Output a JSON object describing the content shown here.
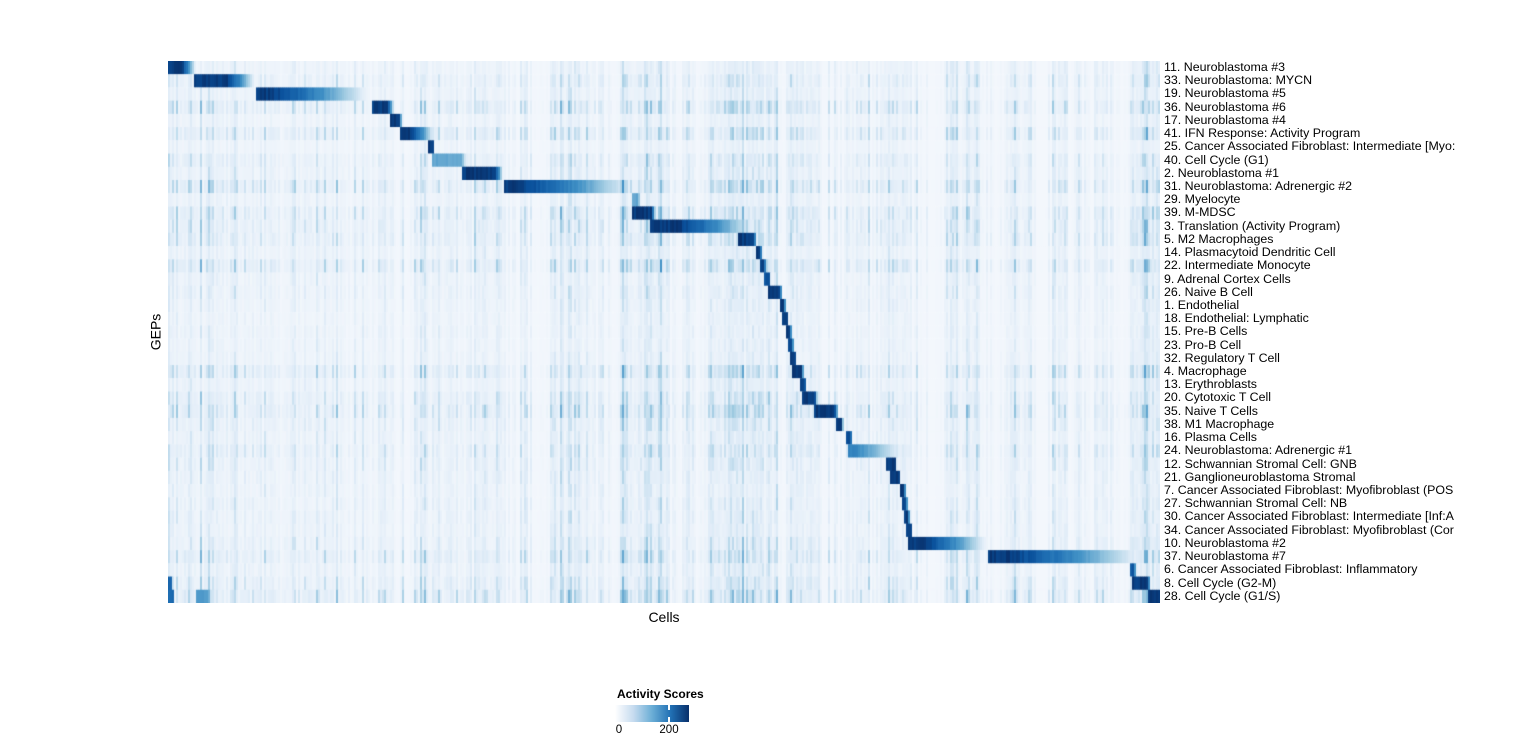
{
  "chart_data": {
    "type": "heatmap",
    "title": "",
    "xlabel": "Cells",
    "ylabel": "GEPs",
    "legend": {
      "title": "Activity Scores",
      "tick_labels": [
        "0",
        "200"
      ],
      "tick_values": [
        0,
        200
      ],
      "tick_positions": [
        0.0,
        0.73
      ],
      "scale_max_estimate": 275,
      "color_low": "#FFFFFF",
      "color_high": "#08306B"
    },
    "colormap_stops": [
      [
        0.0,
        "#F3F7FC"
      ],
      [
        0.12,
        "#DEEBF7"
      ],
      [
        0.3,
        "#9ECAE1"
      ],
      [
        0.5,
        "#4292C6"
      ],
      [
        0.68,
        "#2171B5"
      ],
      [
        0.85,
        "#0A519C"
      ],
      [
        1.0,
        "#08306B"
      ]
    ],
    "n_rows": 41,
    "rows": [
      {
        "label": "11. Neuroblastoma #3",
        "block": [
          0.0,
          0.014,
          0.028
        ],
        "peak": 1.0,
        "noise": 0.2
      },
      {
        "label": "33. Neuroblastoma: MYCN",
        "block": [
          0.027,
          0.059,
          0.088
        ],
        "peak": 1.0,
        "noise": 0.3
      },
      {
        "label": "19. Neuroblastoma #5",
        "block": [
          0.088,
          0.104,
          0.203
        ],
        "peak": 1.0,
        "noise": 0.22
      },
      {
        "label": "36. Neuroblastoma #6",
        "block": [
          0.205,
          0.221,
          0.228
        ],
        "peak": 1.0,
        "noise": 0.42
      },
      {
        "label": "17. Neuroblastoma #4",
        "block": [
          0.224,
          0.233,
          0.236
        ],
        "peak": 1.0,
        "noise": 0.18
      },
      {
        "label": "41. IFN Response: Activity Program",
        "block": [
          0.234,
          0.245,
          0.268
        ],
        "peak": 1.0,
        "noise": 0.4
      },
      {
        "label": "25. Cancer Associated Fibroblast: Intermediate [Myo:",
        "block": [
          0.262,
          0.267,
          0.269
        ],
        "peak": 1.0,
        "noise": 0.15
      },
      {
        "label": "40. Cell Cycle (G1)",
        "block": [
          0.267,
          0.296,
          0.301
        ],
        "peak": 0.45,
        "noise": 0.32
      },
      {
        "label": "2. Neuroblastoma #1",
        "block": [
          0.297,
          0.329,
          0.338
        ],
        "peak": 1.0,
        "noise": 0.25
      },
      {
        "label": "31. Neuroblastoma: Adrenergic #2",
        "block": [
          0.338,
          0.352,
          0.47
        ],
        "peak": 1.0,
        "noise": 0.45
      },
      {
        "label": "29. Myelocyte",
        "block": [
          0.468,
          0.474,
          0.477
        ],
        "peak": 0.45,
        "noise": 0.2
      },
      {
        "label": "39. M-MDSC",
        "block": [
          0.468,
          0.487,
          0.492
        ],
        "peak": 1.0,
        "noise": 0.42
      },
      {
        "label": "3. Translation (Activity Program)",
        "block": [
          0.486,
          0.516,
          0.592
        ],
        "peak": 1.0,
        "noise": 0.35
      },
      {
        "label": "5. M2 Macrophages",
        "block": [
          0.574,
          0.59,
          0.594
        ],
        "peak": 1.0,
        "noise": 0.38
      },
      {
        "label": "14. Plasmacytoid Dendritic Cell",
        "block": [
          0.592,
          0.597,
          0.599
        ],
        "peak": 1.0,
        "noise": 0.22
      },
      {
        "label": "22. Intermediate Monocyte",
        "block": [
          0.596,
          0.601,
          0.603
        ],
        "peak": 1.0,
        "noise": 0.45
      },
      {
        "label": "9. Adrenal Cortex Cells",
        "block": [
          0.601,
          0.606,
          0.608
        ],
        "peak": 0.9,
        "noise": 0.22
      },
      {
        "label": "26. Naive B Cell",
        "block": [
          0.604,
          0.617,
          0.619
        ],
        "peak": 1.0,
        "noise": 0.25
      },
      {
        "label": "1. Endothelial",
        "block": [
          0.616,
          0.621,
          0.623
        ],
        "peak": 1.0,
        "noise": 0.2
      },
      {
        "label": "18. Endothelial: Lymphatic",
        "block": [
          0.619,
          0.624,
          0.626
        ],
        "peak": 0.95,
        "noise": 0.18
      },
      {
        "label": "15. Pre-B Cells",
        "block": [
          0.622,
          0.627,
          0.629
        ],
        "peak": 1.0,
        "noise": 0.2
      },
      {
        "label": "23. Pro-B Cell",
        "block": [
          0.625,
          0.629,
          0.631
        ],
        "peak": 0.95,
        "noise": 0.18
      },
      {
        "label": "32. Regulatory T Cell",
        "block": [
          0.627,
          0.632,
          0.634
        ],
        "peak": 1.0,
        "noise": 0.2
      },
      {
        "label": "4. Macrophage",
        "block": [
          0.63,
          0.639,
          0.641
        ],
        "peak": 1.0,
        "noise": 0.42
      },
      {
        "label": "13. Erythroblasts",
        "block": [
          0.637,
          0.642,
          0.644
        ],
        "peak": 0.95,
        "noise": 0.22
      },
      {
        "label": "20. Cytotoxic T Cell",
        "block": [
          0.64,
          0.652,
          0.655
        ],
        "peak": 1.0,
        "noise": 0.35
      },
      {
        "label": "35. Naive T Cells",
        "block": [
          0.652,
          0.672,
          0.676
        ],
        "peak": 1.0,
        "noise": 0.45
      },
      {
        "label": "38. M1 Macrophage",
        "block": [
          0.673,
          0.679,
          0.681
        ],
        "peak": 1.0,
        "noise": 0.3
      },
      {
        "label": "16. Plasma Cells",
        "block": [
          0.683,
          0.688,
          0.69
        ],
        "peak": 0.95,
        "noise": 0.25
      },
      {
        "label": "24. Neuroblastoma: Adrenergic #1",
        "block": [
          0.685,
          0.692,
          0.742
        ],
        "peak": 0.6,
        "noise": 0.35
      },
      {
        "label": "12. Schwannian Stromal Cell: GNB",
        "block": [
          0.724,
          0.733,
          0.735
        ],
        "peak": 1.0,
        "noise": 0.28
      },
      {
        "label": "21. Ganglioneuroblastoma Stromal",
        "block": [
          0.728,
          0.737,
          0.739
        ],
        "peak": 1.0,
        "noise": 0.25
      },
      {
        "label": "7. Cancer Associated Fibroblast: Myofibroblast (POS",
        "block": [
          0.737,
          0.742,
          0.744
        ],
        "peak": 1.0,
        "noise": 0.22
      },
      {
        "label": "27. Schwannian Stromal Cell: NB",
        "block": [
          0.739,
          0.744,
          0.746
        ],
        "peak": 0.95,
        "noise": 0.25
      },
      {
        "label": "30. Cancer Associated Fibroblast: Intermediate [Inf:A",
        "block": [
          0.741,
          0.746,
          0.748
        ],
        "peak": 1.0,
        "noise": 0.25
      },
      {
        "label": "34. Cancer Associated Fibroblast: Myofibroblast (Cor",
        "block": [
          0.744,
          0.749,
          0.751
        ],
        "peak": 1.0,
        "noise": 0.22
      },
      {
        "label": "10. Neuroblastoma #2",
        "block": [
          0.746,
          0.762,
          0.826
        ],
        "peak": 1.0,
        "noise": 0.3
      },
      {
        "label": "37. Neuroblastoma #7",
        "block": [
          0.827,
          0.848,
          0.982
        ],
        "peak": 1.0,
        "noise": 0.4
      },
      {
        "label": "6. Cancer Associated Fibroblast: Inflammatory",
        "block": [
          0.97,
          0.974,
          0.976
        ],
        "peak": 0.85,
        "noise": 0.25
      },
      {
        "label": "8. Cell Cycle (G2-M)",
        "block": [
          0.971,
          0.988,
          0.99
        ],
        "peak": 1.0,
        "noise": 0.35,
        "extra": [
          [
            0.0,
            0.005,
            0.8
          ]
        ]
      },
      {
        "label": "28. Cell Cycle (G1/S)",
        "block": [
          0.988,
          0.999,
          1.0
        ],
        "peak": 1.0,
        "noise": 0.48,
        "extra": [
          [
            0.0,
            0.006,
            0.75
          ],
          [
            0.028,
            0.04,
            0.5
          ]
        ]
      }
    ],
    "stripe_clusters": [
      [
        0.016,
        0.03,
        0.3
      ],
      [
        0.09,
        0.04,
        0.18
      ],
      [
        0.18,
        0.05,
        0.15
      ],
      [
        0.256,
        0.008,
        0.3
      ],
      [
        0.3,
        0.035,
        0.18
      ],
      [
        0.41,
        0.022,
        0.35
      ],
      [
        0.478,
        0.022,
        0.55
      ],
      [
        0.56,
        0.018,
        0.28
      ],
      [
        0.589,
        0.025,
        0.55
      ],
      [
        0.64,
        0.018,
        0.32
      ],
      [
        0.695,
        0.013,
        0.28
      ],
      [
        0.732,
        0.018,
        0.32
      ],
      [
        0.8,
        0.018,
        0.22
      ],
      [
        0.862,
        0.012,
        0.22
      ],
      [
        0.9,
        0.008,
        0.28
      ],
      [
        0.985,
        0.015,
        0.5
      ]
    ]
  }
}
